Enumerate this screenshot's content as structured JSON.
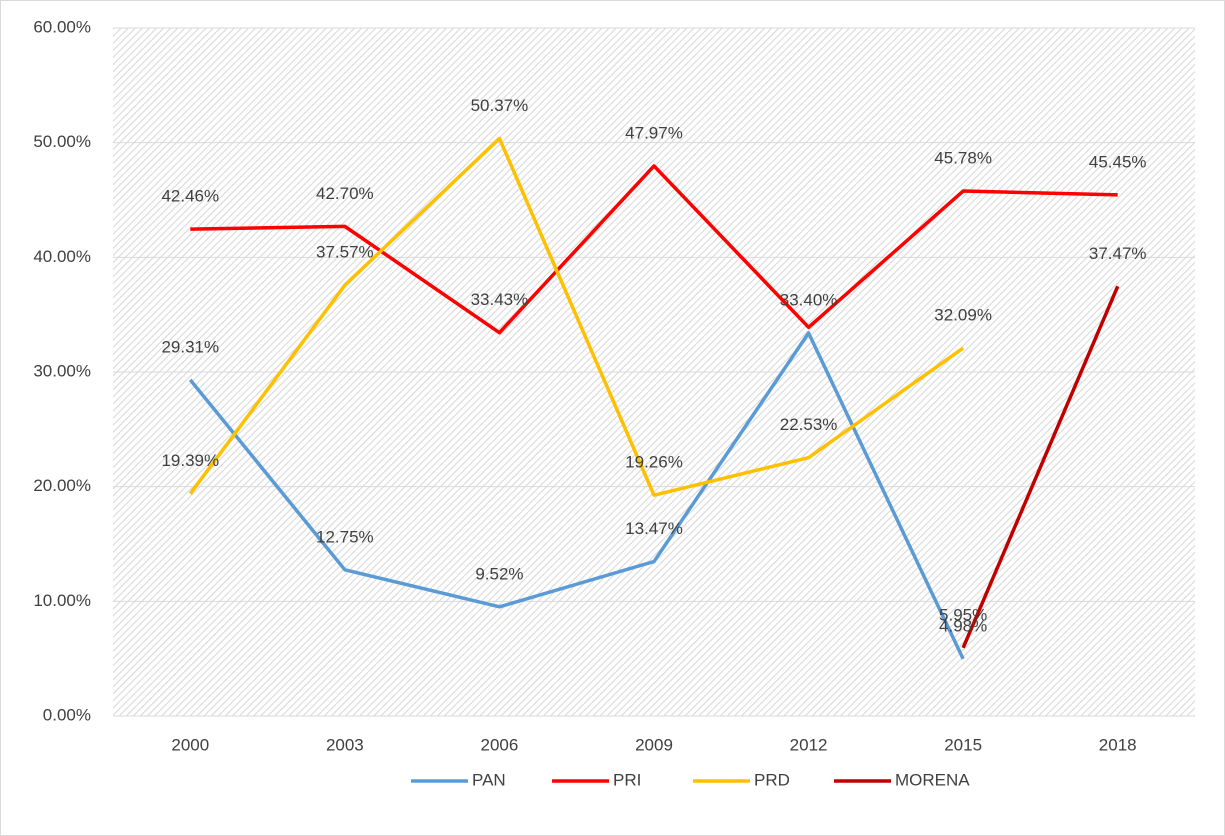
{
  "chart_data": {
    "type": "line",
    "categories": [
      "2000",
      "2003",
      "2006",
      "2009",
      "2012",
      "2015",
      "2018"
    ],
    "series": [
      {
        "name": "PAN",
        "color": "#5b9bd5",
        "values": [
          29.31,
          12.75,
          9.52,
          13.47,
          33.4,
          4.98,
          null
        ],
        "value_labels": [
          "29.31%",
          "12.75%",
          "9.52%",
          "13.47%",
          "33.40%",
          "4.98%",
          null
        ]
      },
      {
        "name": "PRI",
        "color": "#ff0000",
        "values": [
          42.46,
          42.7,
          33.43,
          47.97,
          33.9,
          45.78,
          45.45
        ],
        "value_labels": [
          "42.46%",
          "42.70%",
          "33.43%",
          "47.97%",
          null,
          "45.78%",
          "45.45%"
        ]
      },
      {
        "name": "PRD",
        "color": "#ffc000",
        "values": [
          19.39,
          37.57,
          50.37,
          19.26,
          22.53,
          32.09,
          null
        ],
        "value_labels": [
          "19.39%",
          "37.57%",
          "50.37%",
          "19.26%",
          "22.53%",
          "32.09%",
          null
        ]
      },
      {
        "name": "MORENA",
        "color": "#c00000",
        "values": [
          null,
          null,
          null,
          null,
          null,
          5.95,
          37.47
        ],
        "value_labels": [
          null,
          null,
          null,
          null,
          null,
          "5.95%",
          "37.47%"
        ]
      }
    ],
    "ylim": [
      0,
      60
    ],
    "yticks": [
      {
        "value": 0,
        "label": "0.00%"
      },
      {
        "value": 10,
        "label": "10.00%"
      },
      {
        "value": 20,
        "label": "20.00%"
      },
      {
        "value": 30,
        "label": "30.00%"
      },
      {
        "value": 40,
        "label": "40.00%"
      },
      {
        "value": 50,
        "label": "50.00%"
      },
      {
        "value": 60,
        "label": "60.00%"
      }
    ],
    "grid": true,
    "legend": "bottom"
  }
}
